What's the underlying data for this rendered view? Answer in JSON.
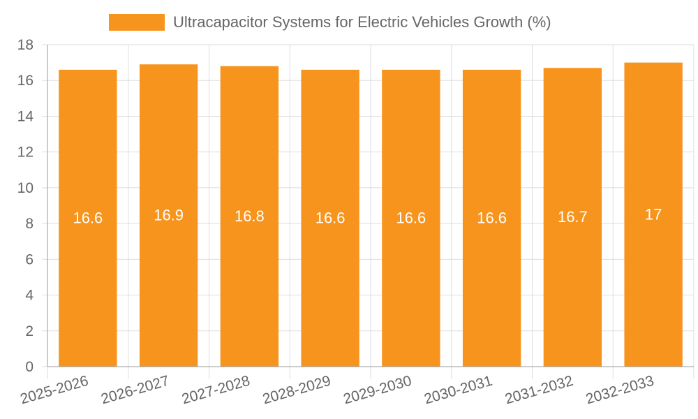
{
  "chart_data": {
    "type": "bar",
    "title": "",
    "legend": {
      "label": "Ultracapacitor Systems for Electric Vehicles Growth (%)",
      "position": "top-center"
    },
    "categories": [
      "2025-2026",
      "2026-2027",
      "2027-2028",
      "2028-2029",
      "2029-2030",
      "2030-2031",
      "2031-2032",
      "2032-2033"
    ],
    "series": [
      {
        "name": "Ultracapacitor Systems for Electric Vehicles Growth (%)",
        "values": [
          16.6,
          16.9,
          16.8,
          16.6,
          16.6,
          16.6,
          16.7,
          17
        ],
        "color": "#f7941d"
      }
    ],
    "data_labels": [
      "16.6",
      "16.9",
      "16.8",
      "16.6",
      "16.6",
      "16.6",
      "16.7",
      "17"
    ],
    "xlabel": "",
    "ylabel": "",
    "ylim": [
      0,
      18
    ],
    "yticks": [
      0,
      2,
      4,
      6,
      8,
      10,
      12,
      14,
      16,
      18
    ],
    "grid": true
  },
  "colors": {
    "bar": "#f7941d",
    "grid": "#dddddd",
    "axis": "#999999",
    "tick_text": "#666666",
    "bar_label": "#ffffff"
  }
}
